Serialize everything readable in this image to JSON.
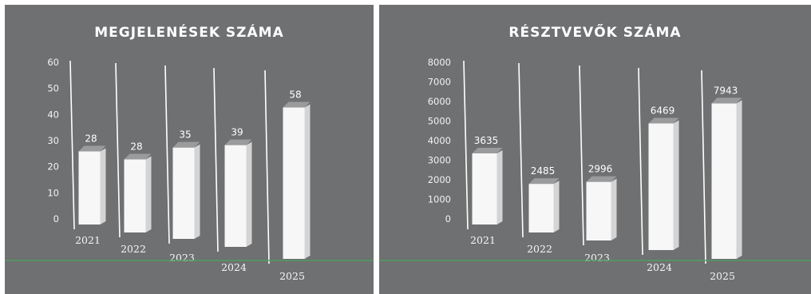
{
  "colors": {
    "background": "#6f7071",
    "bar": "#f7f7f7",
    "bar_top": "#9a9b9c",
    "text": "#ffffff",
    "green_line": "#4f9c63"
  },
  "chart_data": [
    {
      "type": "bar",
      "title": "MEGJELENÉSEK SZÁMA",
      "categories": [
        "2021",
        "2022",
        "2023",
        "2024",
        "2025"
      ],
      "values": [
        28,
        28,
        35,
        39,
        58
      ],
      "ylim": [
        0,
        60
      ],
      "yticks": [
        "60",
        "50",
        "40",
        "30",
        "20",
        "10",
        "0"
      ],
      "xlabel": "",
      "ylabel": "",
      "grid": true,
      "legend": "none"
    },
    {
      "type": "bar",
      "title": "RÉSZTVEVŐK SZÁMA",
      "categories": [
        "2021",
        "2022",
        "2023",
        "2024",
        "2025"
      ],
      "values": [
        3635,
        2485,
        2996,
        6469,
        7943
      ],
      "ylim": [
        0,
        8000
      ],
      "yticks": [
        "8000",
        "7000",
        "6000",
        "5000",
        "4000",
        "3000",
        "2000",
        "1000",
        "0"
      ],
      "xlabel": "",
      "ylabel": "",
      "grid": true,
      "legend": "none"
    }
  ]
}
